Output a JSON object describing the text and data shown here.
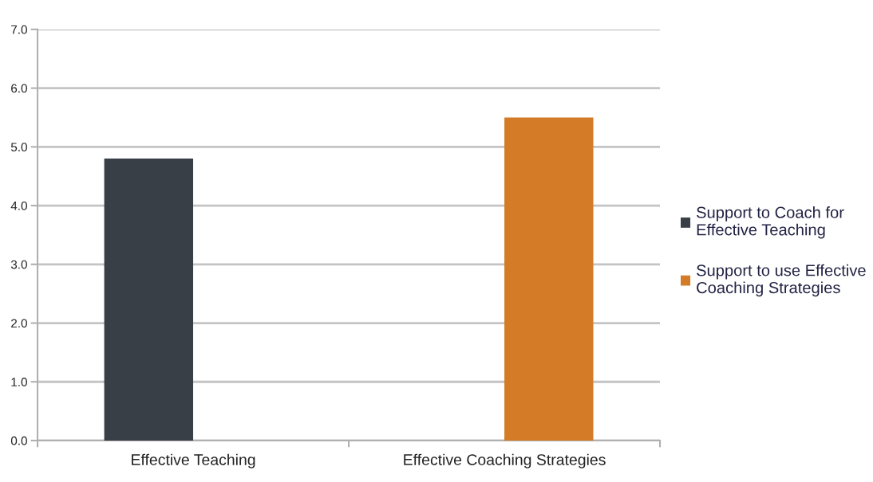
{
  "chart_data": {
    "type": "bar",
    "categories": [
      "Effective Teaching",
      "Effective Coaching Strategies"
    ],
    "series": [
      {
        "name": "Support to Coach for Effective Teaching",
        "color": "#383f47",
        "values": [
          4.8,
          null
        ]
      },
      {
        "name": "Support to use Effective Coaching Strategies",
        "color": "#d47b27",
        "values": [
          null,
          5.5
        ]
      }
    ],
    "ylim": [
      0,
      7
    ],
    "yticks": [
      {
        "value": 0,
        "label": "0.0"
      },
      {
        "value": 1,
        "label": "1.0"
      },
      {
        "value": 2,
        "label": "2.0"
      },
      {
        "value": 3,
        "label": "3.0"
      },
      {
        "value": 4,
        "label": "4.0"
      },
      {
        "value": 5,
        "label": "5.0"
      },
      {
        "value": 6,
        "label": "6.0"
      },
      {
        "value": 7,
        "label": "7.0"
      }
    ],
    "grid": "y",
    "legend": "right"
  }
}
